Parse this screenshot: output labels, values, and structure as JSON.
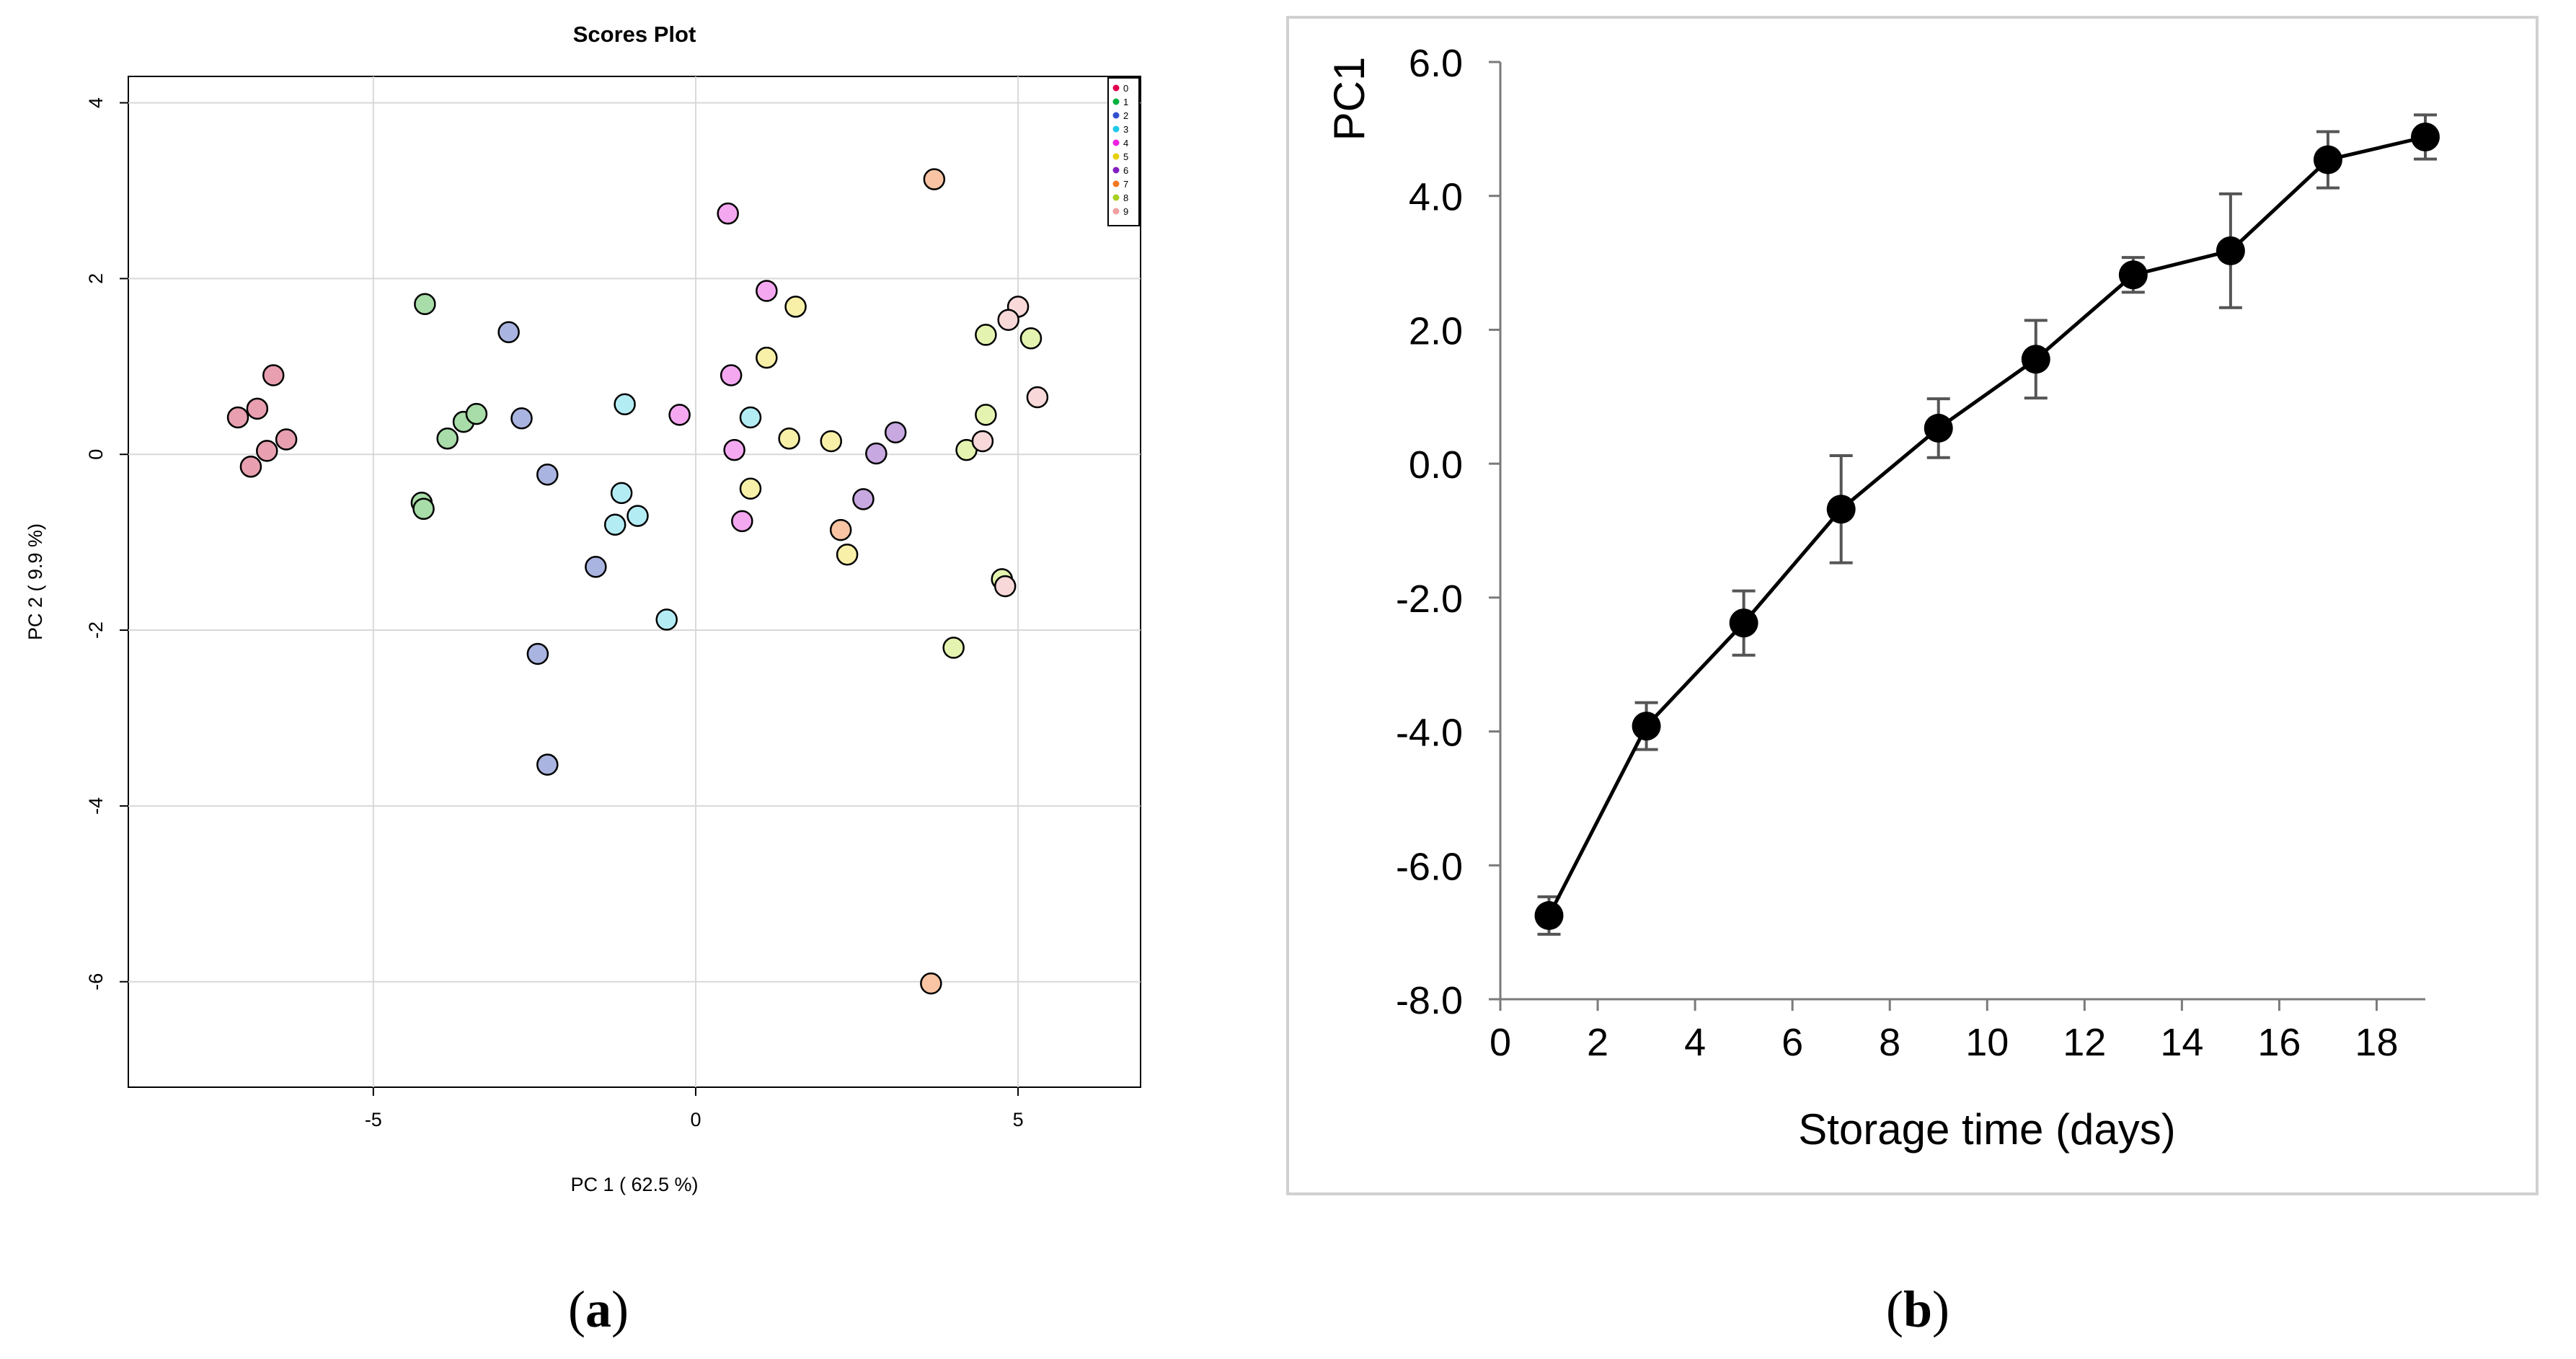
{
  "panels": {
    "a_label_letter": "a",
    "b_label_letter": "b",
    "paren_open": "(",
    "paren_close": ")"
  },
  "chart_data": [
    {
      "panel": "a",
      "type": "scatter",
      "title": "Scores Plot",
      "xlabel": "PC 1 ( 62.5 %)",
      "ylabel": "PC 2 ( 9.9 %)",
      "xlim": [
        -8.8,
        6.9
      ],
      "ylim": [
        -7.2,
        4.3
      ],
      "xticks": [
        -5,
        0,
        5
      ],
      "yticks": [
        -6,
        -4,
        -2,
        0,
        2,
        4
      ],
      "grid": true,
      "legend_position": "top-right",
      "series": [
        {
          "name": "0",
          "color": "#e8a0b0",
          "legend_color": "#e0004f",
          "points": [
            [
              -7.1,
              0.42
            ],
            [
              -6.8,
              0.52
            ],
            [
              -6.55,
              0.9
            ],
            [
              -6.9,
              -0.14
            ],
            [
              -6.65,
              0.04
            ],
            [
              -6.35,
              0.17
            ]
          ]
        },
        {
          "name": "1",
          "color": "#a8dca8",
          "legend_color": "#00b040",
          "points": [
            [
              -4.2,
              1.71
            ],
            [
              -3.85,
              0.18
            ],
            [
              -3.6,
              0.37
            ],
            [
              -3.4,
              0.46
            ],
            [
              -4.25,
              -0.55
            ],
            [
              -4.22,
              -0.62
            ]
          ]
        },
        {
          "name": "2",
          "color": "#aab4e0",
          "legend_color": "#3050d0",
          "points": [
            [
              -2.9,
              1.39
            ],
            [
              -2.7,
              0.41
            ],
            [
              -2.3,
              -0.23
            ],
            [
              -1.55,
              -1.28
            ],
            [
              -2.45,
              -2.27
            ],
            [
              -2.3,
              -3.53
            ]
          ]
        },
        {
          "name": "3",
          "color": "#b4ecf4",
          "legend_color": "#20c8e8",
          "points": [
            [
              -1.1,
              0.57
            ],
            [
              -1.15,
              -0.44
            ],
            [
              -1.25,
              -0.8
            ],
            [
              -0.9,
              -0.7
            ],
            [
              -0.45,
              -1.88
            ],
            [
              0.85,
              0.42
            ]
          ]
        },
        {
          "name": "4",
          "color": "#f4a8f0",
          "legend_color": "#f020e0",
          "points": [
            [
              0.5,
              2.74
            ],
            [
              1.1,
              1.86
            ],
            [
              0.55,
              0.9
            ],
            [
              -0.25,
              0.45
            ],
            [
              0.6,
              0.05
            ],
            [
              0.72,
              -0.76
            ]
          ]
        },
        {
          "name": "5",
          "color": "#f8f0a8",
          "legend_color": "#e8d010",
          "points": [
            [
              1.55,
              1.68
            ],
            [
              1.1,
              1.1
            ],
            [
              1.45,
              0.18
            ],
            [
              2.1,
              0.15
            ],
            [
              0.85,
              -0.39
            ],
            [
              2.35,
              -1.14
            ]
          ]
        },
        {
          "name": "6",
          "color": "#c8a8e0",
          "legend_color": "#8020c0",
          "points": [
            [
              3.1,
              0.25
            ],
            [
              2.8,
              0.01
            ],
            [
              2.6,
              -0.51
            ]
          ]
        },
        {
          "name": "7",
          "color": "#f8c4a4",
          "legend_color": "#f07820",
          "points": [
            [
              3.7,
              3.13
            ],
            [
              2.25,
              -0.86
            ],
            [
              3.65,
              -6.02
            ]
          ]
        },
        {
          "name": "8",
          "color": "#e4f4b0",
          "legend_color": "#a8d020",
          "points": [
            [
              4.5,
              1.36
            ],
            [
              5.2,
              1.32
            ],
            [
              4.5,
              0.45
            ],
            [
              4.2,
              0.05
            ],
            [
              4.0,
              -2.2
            ],
            [
              4.75,
              -1.42
            ]
          ]
        },
        {
          "name": "9",
          "color": "#f8d8d8",
          "legend_color": "#f0a0a0",
          "points": [
            [
              5.0,
              1.68
            ],
            [
              4.85,
              1.53
            ],
            [
              5.3,
              0.65
            ],
            [
              4.45,
              0.15
            ],
            [
              4.8,
              -1.5
            ]
          ]
        }
      ]
    },
    {
      "panel": "b",
      "type": "line",
      "title": "",
      "xlabel": "Storage time (days)",
      "ylabel": "PC1",
      "xlim": [
        0,
        19
      ],
      "ylim": [
        -8.0,
        6.0
      ],
      "xticks": [
        0,
        2,
        4,
        6,
        8,
        10,
        12,
        14,
        16,
        18
      ],
      "yticks": [
        "-8.0",
        "-6.0",
        "-4.0",
        "-2.0",
        "0.0",
        "2.0",
        "4.0",
        "6.0"
      ],
      "grid": false,
      "series": [
        {
          "name": "PC1",
          "color": "#000000",
          "errorbar_color": "#555555",
          "x": [
            1,
            3,
            5,
            7,
            9,
            11,
            13,
            15,
            17,
            19
          ],
          "y": [
            -6.75,
            -3.92,
            -2.38,
            -0.68,
            0.53,
            1.56,
            2.82,
            3.18,
            4.54,
            4.88
          ],
          "err": [
            0.28,
            0.35,
            0.48,
            0.8,
            0.44,
            0.58,
            0.26,
            0.85,
            0.42,
            0.33
          ]
        }
      ]
    }
  ]
}
